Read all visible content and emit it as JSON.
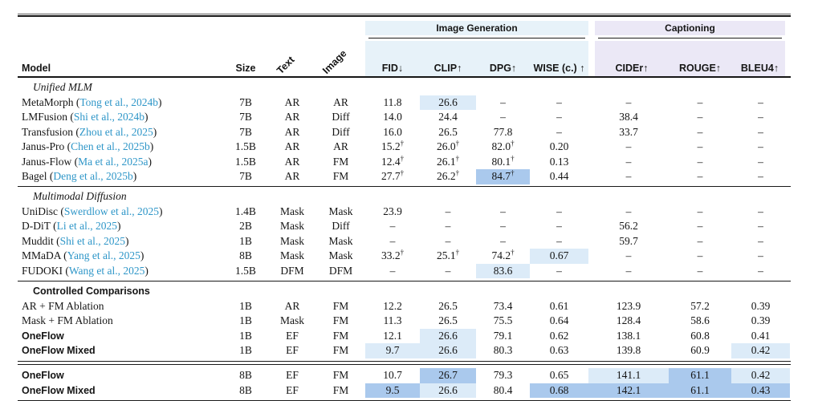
{
  "table": {
    "colors": {
      "group_imggen_bg": "#e7f2f9",
      "group_captioning_bg": "#ebe8f6",
      "highlight_light": "#dcebf8",
      "highlight_dark": "#aac9ed",
      "citation_blue": "#2e96c8"
    },
    "header": {
      "model_label": "Model",
      "size_label": "Size",
      "text_label": "Text",
      "image_label": "Image",
      "groups": [
        {
          "id": "imggen",
          "label": "Image Generation"
        },
        {
          "id": "captioning",
          "label": "Captioning"
        }
      ],
      "metric_columns": [
        {
          "key": "fid",
          "label": "FID↓",
          "group": "imggen"
        },
        {
          "key": "clip",
          "label": "CLIP↑",
          "group": "imggen"
        },
        {
          "key": "dpg",
          "label": "DPG↑",
          "group": "imggen"
        },
        {
          "key": "wise",
          "label": "WISE (c.) ↑",
          "group": "imggen"
        },
        {
          "key": "cider",
          "label": "CIDEr↑",
          "group": "captioning"
        },
        {
          "key": "rouge",
          "label": "ROUGE↑",
          "group": "captioning"
        },
        {
          "key": "bleu4",
          "label": "BLEU4↑",
          "group": "captioning"
        }
      ]
    },
    "sections": [
      {
        "title": "Unified MLM",
        "title_style": "italic",
        "divider_after": "thin",
        "rows": [
          {
            "model": "MetaMorph",
            "citation": "Tong et al., 2024b",
            "size": "7B",
            "text": "AR",
            "image": "AR",
            "metrics": [
              {
                "v": "11.8"
              },
              {
                "v": "26.6",
                "hl": "light"
              },
              {
                "v": "–"
              },
              {
                "v": "–"
              },
              {
                "v": "–"
              },
              {
                "v": "–"
              },
              {
                "v": "–"
              }
            ]
          },
          {
            "model": "LMFusion",
            "citation": "Shi et al., 2024b",
            "size": "7B",
            "text": "AR",
            "image": "Diff",
            "metrics": [
              {
                "v": "14.0"
              },
              {
                "v": "24.4"
              },
              {
                "v": "–"
              },
              {
                "v": "–"
              },
              {
                "v": "38.4"
              },
              {
                "v": "–"
              },
              {
                "v": "–"
              }
            ]
          },
          {
            "model": "Transfusion",
            "citation": "Zhou et al., 2025",
            "size": "7B",
            "text": "AR",
            "image": "Diff",
            "metrics": [
              {
                "v": "16.0"
              },
              {
                "v": "26.5"
              },
              {
                "v": "77.8"
              },
              {
                "v": "–"
              },
              {
                "v": "33.7"
              },
              {
                "v": "–"
              },
              {
                "v": "–"
              }
            ]
          },
          {
            "model": "Janus-Pro",
            "citation": "Chen et al., 2025b",
            "size": "1.5B",
            "text": "AR",
            "image": "AR",
            "metrics": [
              {
                "v": "15.2",
                "sup": "†"
              },
              {
                "v": "26.0",
                "sup": "†"
              },
              {
                "v": "82.0",
                "sup": "†"
              },
              {
                "v": "0.20"
              },
              {
                "v": "–"
              },
              {
                "v": "–"
              },
              {
                "v": "–"
              }
            ]
          },
          {
            "model": "Janus-Flow",
            "citation": "Ma et al., 2025a",
            "size": "1.5B",
            "text": "AR",
            "image": "FM",
            "metrics": [
              {
                "v": "12.4",
                "sup": "†"
              },
              {
                "v": "26.1",
                "sup": "†"
              },
              {
                "v": "80.1",
                "sup": "†"
              },
              {
                "v": "0.13"
              },
              {
                "v": "–"
              },
              {
                "v": "–"
              },
              {
                "v": "–"
              }
            ]
          },
          {
            "model": "Bagel",
            "citation": "Deng et al., 2025b",
            "size": "7B",
            "text": "AR",
            "image": "FM",
            "metrics": [
              {
                "v": "27.7",
                "sup": "†"
              },
              {
                "v": "26.2",
                "sup": "†"
              },
              {
                "v": "84.7",
                "sup": "†",
                "hl": "dark"
              },
              {
                "v": "0.44"
              },
              {
                "v": "–"
              },
              {
                "v": "–"
              },
              {
                "v": "–"
              }
            ]
          }
        ]
      },
      {
        "title": "Multimodal Diffusion",
        "title_style": "italic",
        "divider_after": "thin",
        "rows": [
          {
            "model": "UniDisc",
            "citation": "Swerdlow et al., 2025",
            "size": "1.4B",
            "text": "Mask",
            "image": "Mask",
            "metrics": [
              {
                "v": "23.9"
              },
              {
                "v": "–"
              },
              {
                "v": "–"
              },
              {
                "v": "–"
              },
              {
                "v": "–"
              },
              {
                "v": "–"
              },
              {
                "v": "–"
              }
            ]
          },
          {
            "model": "D-DiT",
            "citation": "Li et al., 2025",
            "size": "2B",
            "text": "Mask",
            "image": "Diff",
            "metrics": [
              {
                "v": "–"
              },
              {
                "v": "–"
              },
              {
                "v": "–"
              },
              {
                "v": "–"
              },
              {
                "v": "56.2"
              },
              {
                "v": "–"
              },
              {
                "v": "–"
              }
            ]
          },
          {
            "model": "Muddit",
            "citation": "Shi et al., 2025",
            "size": "1B",
            "text": "Mask",
            "image": "Mask",
            "metrics": [
              {
                "v": "–"
              },
              {
                "v": "–"
              },
              {
                "v": "–"
              },
              {
                "v": "–"
              },
              {
                "v": "59.7"
              },
              {
                "v": "–"
              },
              {
                "v": "–"
              }
            ]
          },
          {
            "model": "MMaDA",
            "citation": "Yang et al., 2025",
            "size": "8B",
            "text": "Mask",
            "image": "Mask",
            "metrics": [
              {
                "v": "33.2",
                "sup": "†"
              },
              {
                "v": "25.1",
                "sup": "†"
              },
              {
                "v": "74.2",
                "sup": "†"
              },
              {
                "v": "0.67",
                "hl": "light"
              },
              {
                "v": "–"
              },
              {
                "v": "–"
              },
              {
                "v": "–"
              }
            ]
          },
          {
            "model": "FUDOKI",
            "citation": "Wang et al., 2025",
            "size": "1.5B",
            "text": "DFM",
            "image": "DFM",
            "metrics": [
              {
                "v": "–"
              },
              {
                "v": "–"
              },
              {
                "v": "83.6",
                "hl": "light"
              },
              {
                "v": "–"
              },
              {
                "v": "–"
              },
              {
                "v": "–"
              },
              {
                "v": "–"
              }
            ]
          }
        ]
      },
      {
        "title": "Controlled Comparisons",
        "title_style": "bold",
        "divider_after": "double",
        "rows": [
          {
            "model": "AR + FM Ablation",
            "size": "1B",
            "text": "AR",
            "image": "FM",
            "metrics": [
              {
                "v": "12.2"
              },
              {
                "v": "26.5"
              },
              {
                "v": "73.4"
              },
              {
                "v": "0.61"
              },
              {
                "v": "123.9"
              },
              {
                "v": "57.2"
              },
              {
                "v": "0.39"
              }
            ]
          },
          {
            "model": "Mask + FM Ablation",
            "size": "1B",
            "text": "Mask",
            "image": "FM",
            "metrics": [
              {
                "v": "11.3"
              },
              {
                "v": "26.5"
              },
              {
                "v": "75.5"
              },
              {
                "v": "0.64"
              },
              {
                "v": "128.4"
              },
              {
                "v": "58.6"
              },
              {
                "v": "0.39"
              }
            ]
          },
          {
            "model": "OneFlow",
            "bold": true,
            "size": "1B",
            "text": "EF",
            "image": "FM",
            "metrics": [
              {
                "v": "12.1"
              },
              {
                "v": "26.6",
                "hl": "light"
              },
              {
                "v": "79.1"
              },
              {
                "v": "0.62"
              },
              {
                "v": "138.1"
              },
              {
                "v": "60.8"
              },
              {
                "v": "0.41"
              }
            ]
          },
          {
            "model": "OneFlow Mixed",
            "bold": true,
            "size": "1B",
            "text": "EF",
            "image": "FM",
            "metrics": [
              {
                "v": "9.7",
                "hl": "light"
              },
              {
                "v": "26.6",
                "hl": "light"
              },
              {
                "v": "80.3"
              },
              {
                "v": "0.63"
              },
              {
                "v": "139.8"
              },
              {
                "v": "60.9"
              },
              {
                "v": "0.42",
                "hl": "light"
              }
            ]
          }
        ]
      },
      {
        "title": "",
        "divider_after": "bottom",
        "rows": [
          {
            "model": "OneFlow",
            "bold": true,
            "size": "8B",
            "text": "EF",
            "image": "FM",
            "metrics": [
              {
                "v": "10.7"
              },
              {
                "v": "26.7",
                "hl": "dark"
              },
              {
                "v": "79.3"
              },
              {
                "v": "0.65"
              },
              {
                "v": "141.1",
                "hl": "light"
              },
              {
                "v": "61.1",
                "hl": "dark"
              },
              {
                "v": "0.42",
                "hl": "light"
              }
            ]
          },
          {
            "model": "OneFlow Mixed",
            "bold": true,
            "size": "8B",
            "text": "EF",
            "image": "FM",
            "metrics": [
              {
                "v": "9.5",
                "hl": "dark"
              },
              {
                "v": "26.6",
                "hl": "light"
              },
              {
                "v": "80.4"
              },
              {
                "v": "0.68",
                "hl": "dark"
              },
              {
                "v": "142.1",
                "hl": "dark"
              },
              {
                "v": "61.1",
                "hl": "dark"
              },
              {
                "v": "0.43",
                "hl": "dark"
              }
            ]
          }
        ]
      }
    ]
  }
}
